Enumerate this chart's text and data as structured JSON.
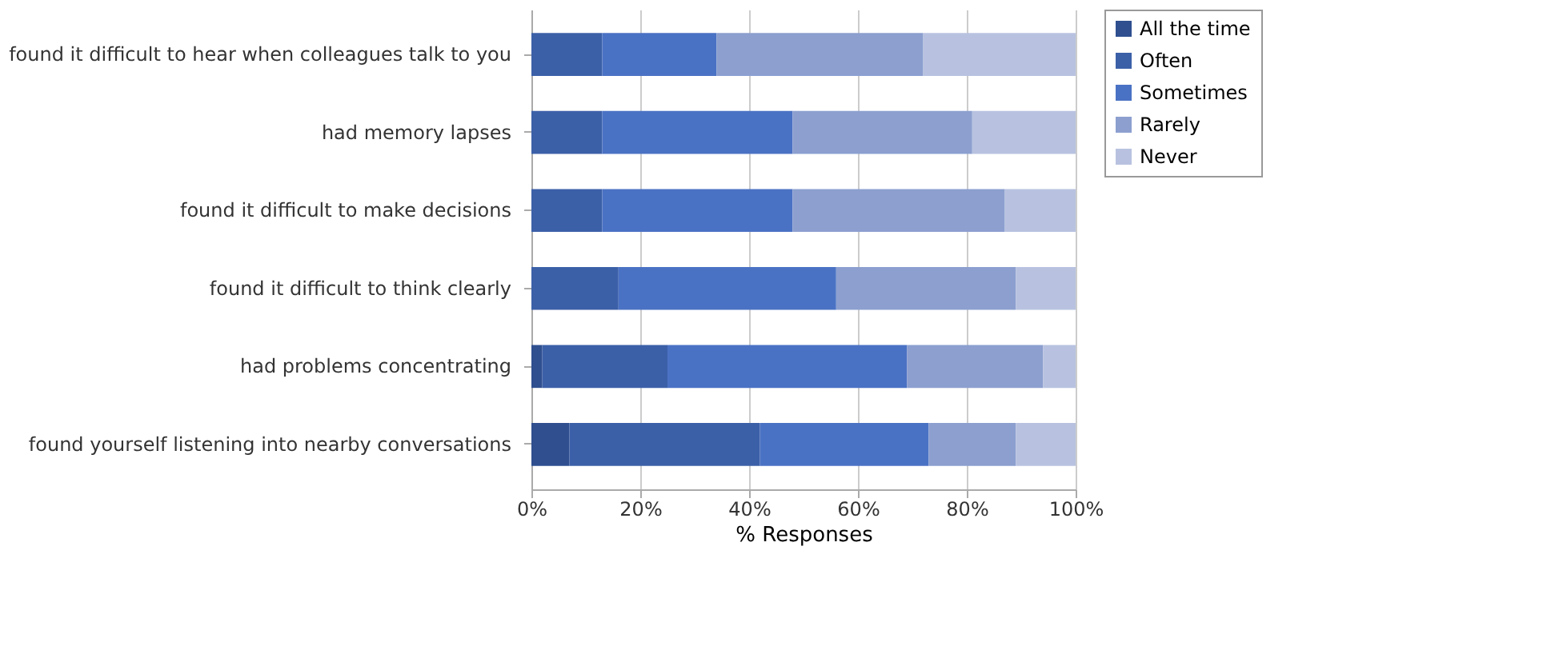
{
  "chart_data": {
    "type": "bar",
    "orientation": "horizontal",
    "stacked": true,
    "xlabel": "% Responses",
    "categories": [
      "found it difficult to hear when colleagues talk to you",
      "had memory lapses",
      "found it difficult to make decisions",
      "found it difficult to think clearly",
      "had problems concentrating",
      "found yourself listening into nearby conversations"
    ],
    "series": [
      {
        "name": "All the time",
        "color": "#2f4f8f",
        "values": [
          0,
          0,
          0,
          0,
          2,
          7
        ]
      },
      {
        "name": "Often",
        "color": "#3c60a8",
        "values": [
          13,
          13,
          13,
          16,
          23,
          35
        ]
      },
      {
        "name": "Sometimes",
        "color": "#4a72c4",
        "values": [
          21,
          35,
          35,
          40,
          44,
          31
        ]
      },
      {
        "name": "Rarely",
        "color": "#8c9fcf",
        "values": [
          38,
          33,
          39,
          33,
          25,
          16
        ]
      },
      {
        "name": "Never",
        "color": "#b8c2e0",
        "values": [
          28,
          19,
          13,
          11,
          6,
          11
        ]
      }
    ],
    "xlim": [
      0,
      100
    ],
    "xticks": [
      {
        "value": 0,
        "label": "0%"
      },
      {
        "value": 20,
        "label": "20%"
      },
      {
        "value": 40,
        "label": "40%"
      },
      {
        "value": 60,
        "label": "60%"
      },
      {
        "value": 80,
        "label": "80%"
      },
      {
        "value": 100,
        "label": "100%"
      }
    ],
    "grid": "x",
    "legend": "right"
  }
}
